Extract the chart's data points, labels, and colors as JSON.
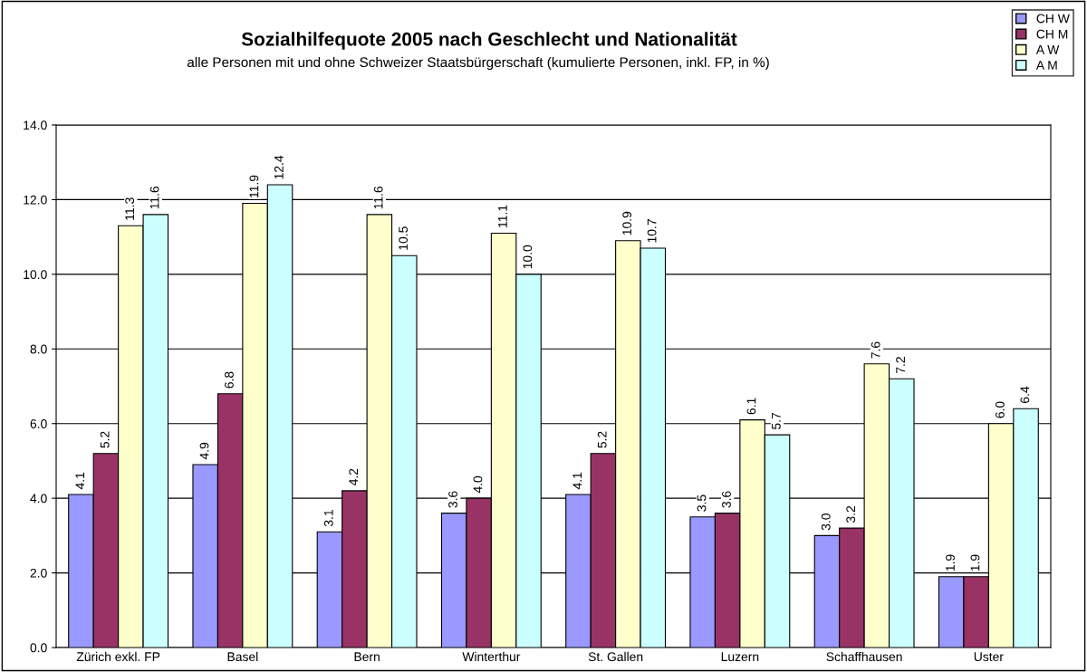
{
  "chart_data": {
    "type": "bar",
    "title": "Sozialhilfequote 2005 nach Geschlecht und Nationalität",
    "subtitle": "alle Personen mit und ohne Schweizer Staatsbürgerschaft (kumulierte Personen, inkl. FP, in %)",
    "categories": [
      "Zürich exkl. FP",
      "Basel",
      "Bern",
      "Winterthur",
      "St. Gallen",
      "Luzern",
      "Schaffhausen",
      "Uster"
    ],
    "series": [
      {
        "name": "CH W",
        "color": "#9999ff",
        "values": [
          4.1,
          4.9,
          3.1,
          3.6,
          4.1,
          3.5,
          3.0,
          1.9
        ],
        "value_labels": [
          "4.1",
          "4.9",
          "3.1",
          "3.6",
          "4.1",
          "3.5",
          "3.0",
          "1.9"
        ]
      },
      {
        "name": "CH M",
        "color": "#993366",
        "values": [
          5.2,
          6.8,
          4.2,
          4.0,
          5.2,
          3.6,
          3.2,
          1.9
        ],
        "value_labels": [
          "5.2",
          "6.8",
          "4.2",
          "4.0",
          "5.2",
          "3.6",
          "3.2",
          "1.9"
        ]
      },
      {
        "name": "A W",
        "color": "#ffffcc",
        "values": [
          11.3,
          11.9,
          11.6,
          11.1,
          10.9,
          6.1,
          7.6,
          6.0
        ],
        "value_labels": [
          "11.3",
          "11.9",
          "11.6",
          "11.1",
          "10.9",
          "6.1",
          "7.6",
          "6.0"
        ]
      },
      {
        "name": "A M",
        "color": "#ccffff",
        "values": [
          11.6,
          12.4,
          10.5,
          10.0,
          10.7,
          5.7,
          7.2,
          6.4
        ],
        "value_labels": [
          "11.6",
          "12.4",
          "10.5",
          "10.0",
          "10.7",
          "5.7",
          "7.2",
          "6.4"
        ]
      }
    ],
    "ylim": [
      0,
      14
    ],
    "yticks": [
      {
        "value": 0,
        "label": "0.0"
      },
      {
        "value": 2,
        "label": "2.0"
      },
      {
        "value": 4,
        "label": "4.0"
      },
      {
        "value": 6,
        "label": "6.0"
      },
      {
        "value": 8,
        "label": "8.0"
      },
      {
        "value": 10,
        "label": "10.0"
      },
      {
        "value": 12,
        "label": "12.0"
      },
      {
        "value": 14,
        "label": "14.0"
      }
    ],
    "grid": "y",
    "legend": "top right"
  }
}
